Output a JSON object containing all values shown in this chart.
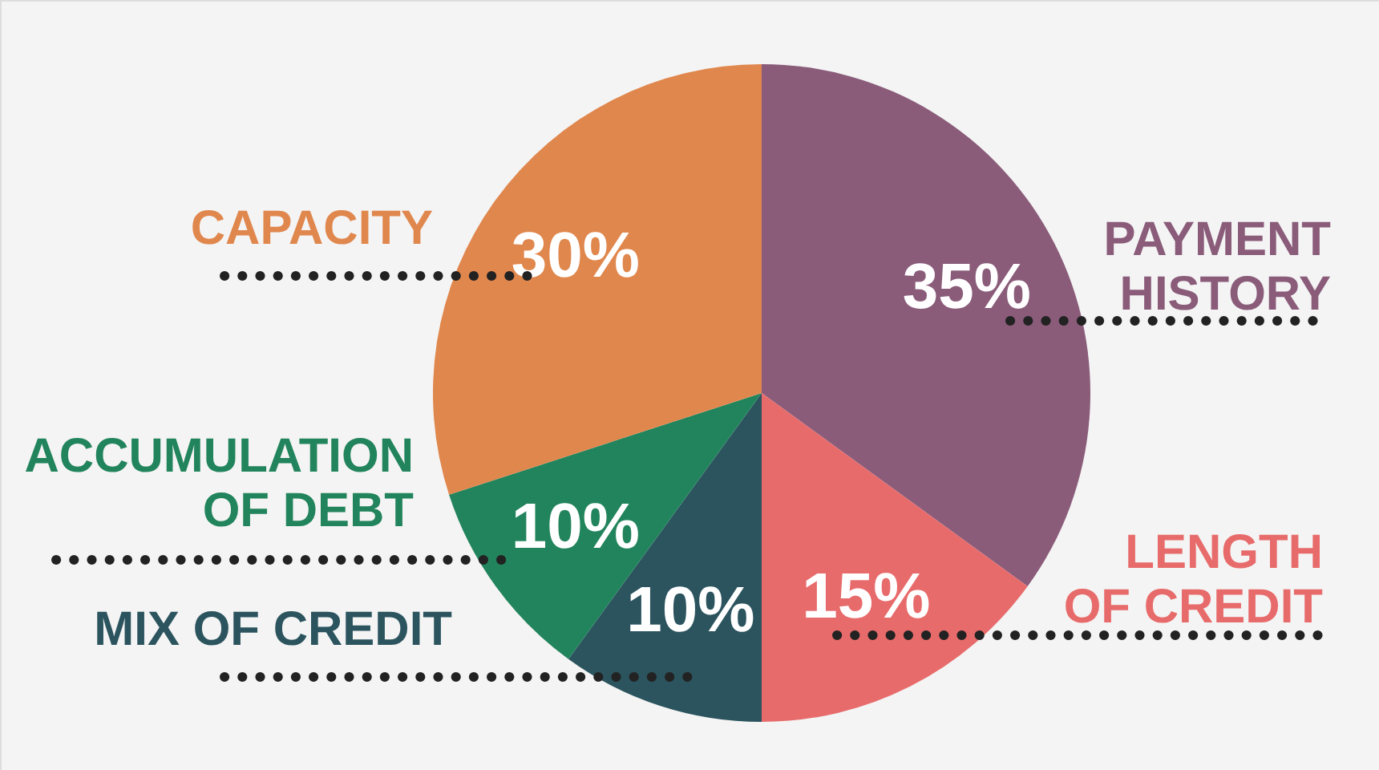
{
  "chart_data": {
    "type": "pie",
    "categories": [
      "PAYMENT HISTORY",
      "LENGTH OF CREDIT",
      "MIX OF CREDIT",
      "ACCUMULATION OF DEBT",
      "CAPACITY"
    ],
    "values": [
      35,
      15,
      10,
      10,
      30
    ],
    "colors": [
      "#8a5c7a",
      "#e86b6b",
      "#2b545e",
      "#22845c",
      "#e0874d"
    ],
    "value_labels": [
      "35%",
      "15%",
      "10%",
      "10%",
      "30%"
    ]
  }
}
